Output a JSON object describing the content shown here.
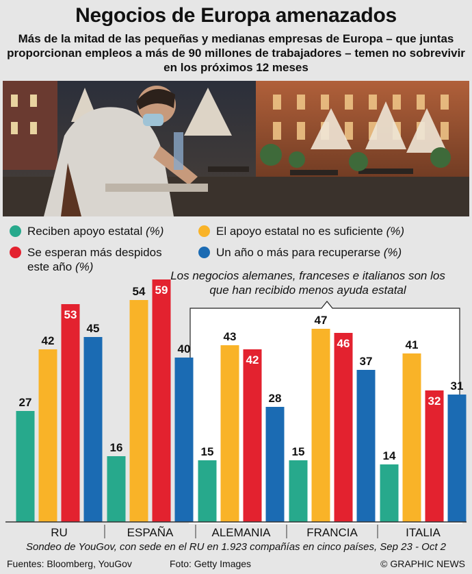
{
  "title": "Negocios de Europa amenazados",
  "subtitle": "Más de la mitad de las pequeñas y medianas empresas de Europa – que juntas proporcionan empleos a más de 90 millones de trabajadores – temen no sobrevivir en los próximos 12 meses",
  "legend": [
    {
      "label": "Reciben apoyo estatal",
      "unit": "(%)",
      "color": "#27a98c"
    },
    {
      "label": "El apoyo estatal no es suficiente",
      "unit": "(%)",
      "color": "#f9b328"
    },
    {
      "label": "Se esperan más despidos",
      "label2": "este año",
      "unit": "(%)",
      "color": "#e3222f"
    },
    {
      "label": "Un año o más para recuperarse",
      "unit": "(%)",
      "color": "#1b6bb3"
    }
  ],
  "annotation": "Los negocios alemanes, franceses e italianos son los que han recibido menos ayuda estatal",
  "chart_data": {
    "type": "bar",
    "categories": [
      "RU",
      "ESPAÑA",
      "ALEMANIA",
      "FRANCIA",
      "ITALIA"
    ],
    "series": [
      {
        "name": "Reciben apoyo estatal (%)",
        "color": "#27a98c",
        "values": [
          27,
          16,
          15,
          15,
          14
        ]
      },
      {
        "name": "El apoyo estatal no es suficiente (%)",
        "color": "#f9b328",
        "values": [
          42,
          54,
          43,
          47,
          41
        ]
      },
      {
        "name": "Se esperan más despidos este año (%)",
        "color": "#e3222f",
        "values": [
          53,
          59,
          42,
          46,
          32
        ]
      },
      {
        "name": "Un año o más para recuperarse (%)",
        "color": "#1b6bb3",
        "values": [
          45,
          40,
          28,
          37,
          31
        ]
      }
    ],
    "ylim": [
      0,
      60
    ],
    "grid": false,
    "legend_position": "top"
  },
  "footnote": "Sondeo de YouGov, con sede en el RU en 1.923 compañías en cinco países, Sep 23 - Oct 2",
  "sources": "Fuentes: Bloomberg, YouGov",
  "photo_credit": "Foto: Getty Images",
  "copyright": "© GRAPHIC NEWS"
}
